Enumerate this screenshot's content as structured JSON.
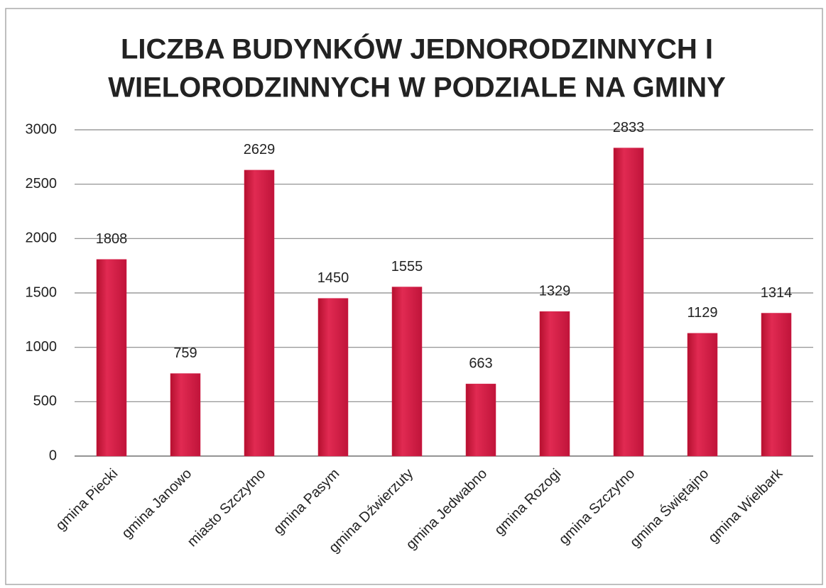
{
  "chart_data": {
    "type": "bar",
    "title": [
      "LICZBA BUDYNKÓW JEDNORODZINNYCH I",
      "WIELORODZINNYCH W PODZIALE NA GMINY"
    ],
    "categories": [
      "gmina Piecki",
      "gmina Janowo",
      "miasto Szczytno",
      "gmina Pasym",
      "gmina Dźwierzuty",
      "gmina Jedwabno",
      "gmina Rozogi",
      "gmina Szczytno",
      "gmina Świętajno",
      "gmina Wielbark"
    ],
    "values": [
      1808,
      759,
      2629,
      1450,
      1555,
      663,
      1329,
      2833,
      1129,
      1314
    ],
    "color": "#d41c45",
    "ylim": [
      0,
      3000
    ],
    "yticks": [
      0,
      500,
      1000,
      1500,
      2000,
      2500,
      3000
    ],
    "grid": true
  }
}
